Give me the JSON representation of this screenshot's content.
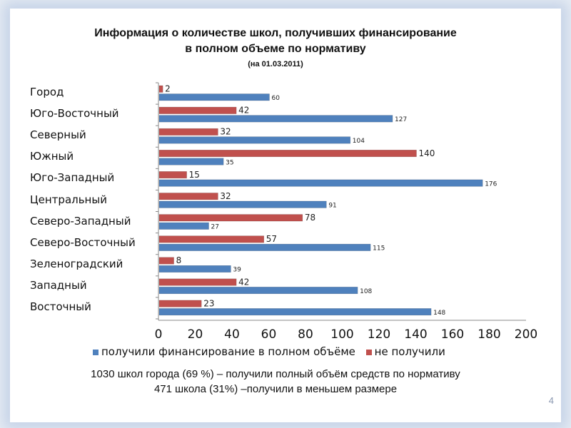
{
  "slide": {
    "title_line1": "Информация о количестве школ, получивших финансирование",
    "title_line2": "в полном объеме по нормативу",
    "subtitle": "(на 01.03.2011)",
    "note_line1": "1030 школ города (69 %) – получили полный объём средств по нормативу",
    "note_line2": "471 школа (31%) –получили в меньшем размере",
    "page_number": "4"
  },
  "chart_data": {
    "type": "bar",
    "orientation": "horizontal",
    "categories": [
      "Город",
      "Юго-Восточный",
      "Северный",
      "Южный",
      "Юго-Западный",
      "Центральный",
      "Северо-Западный",
      "Северо-Восточный",
      "Зеленоградский",
      "Западный",
      "Восточный"
    ],
    "series": [
      {
        "name": "получили финансирование в полном объёме",
        "color": "#4f81bd",
        "values": [
          60,
          127,
          104,
          35,
          176,
          91,
          27,
          115,
          39,
          108,
          148
        ]
      },
      {
        "name": "не получили",
        "color": "#c0504d",
        "values": [
          2,
          42,
          32,
          140,
          15,
          32,
          78,
          57,
          8,
          42,
          23
        ]
      }
    ],
    "xlim": [
      0,
      200
    ],
    "xticks": [
      "0",
      "20",
      "40",
      "60",
      "80",
      "100",
      "120",
      "140",
      "160",
      "180",
      "200"
    ],
    "legend": "bottom"
  }
}
